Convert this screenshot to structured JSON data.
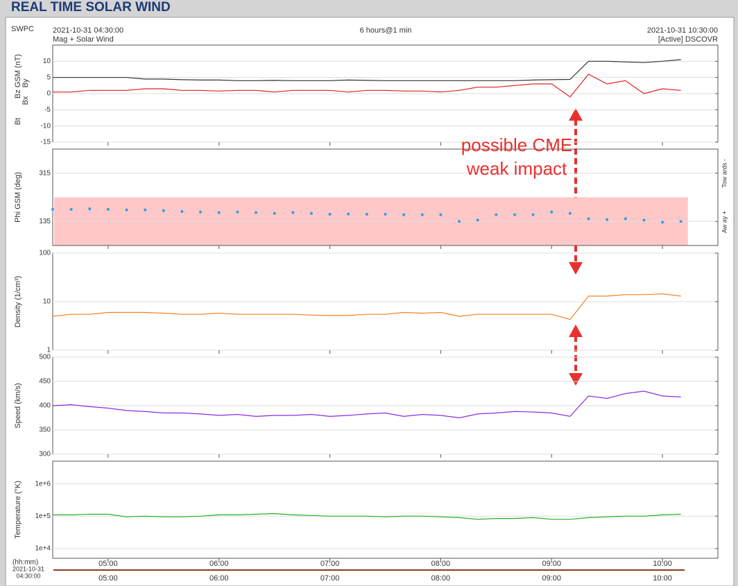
{
  "page_title": "REAL TIME SOLAR WIND",
  "header": {
    "source": "SWPC",
    "start": "2021-10-31 04:30:00",
    "end": "2021-10-31 10:30:00",
    "product": "Mag + Solar Wind",
    "span": "6 hours@1 min",
    "satellite": "[Active] DSCOVR"
  },
  "annotation": "possible CME weak impact",
  "time_axis": {
    "label": "(hh:mm)",
    "date": "2021-10-31",
    "start_time": "04:30:00",
    "xlim": [
      "04:30",
      "10:30"
    ],
    "xticks": [
      "05:00",
      "06:00",
      "07:00",
      "08:00",
      "09:00",
      "10:00"
    ]
  },
  "chart_data": [
    {
      "type": "line",
      "ylim": [
        -15,
        15
      ],
      "yticks": [
        -15,
        -10,
        -5,
        0,
        5,
        10
      ],
      "grid": true,
      "ylabel_extra": [
        "By",
        "Bx"
      ],
      "x": [
        "04:30",
        "04:40",
        "04:50",
        "05:00",
        "05:10",
        "05:20",
        "05:30",
        "05:40",
        "05:50",
        "06:00",
        "06:10",
        "06:20",
        "06:30",
        "06:40",
        "06:50",
        "07:00",
        "07:10",
        "07:20",
        "07:30",
        "07:40",
        "07:50",
        "08:00",
        "08:10",
        "08:20",
        "08:30",
        "08:40",
        "08:50",
        "09:00",
        "09:10",
        "09:20",
        "09:30",
        "09:40",
        "09:50",
        "10:00",
        "10:10"
      ],
      "series": [
        {
          "name": "Bt",
          "color": "#333333",
          "values": [
            5,
            5,
            5,
            5,
            5,
            4.5,
            4.5,
            4.3,
            4.2,
            4.2,
            4,
            4,
            4.1,
            4,
            4,
            4,
            4.2,
            4.1,
            4,
            4,
            4,
            4,
            4,
            4,
            4,
            4,
            4.2,
            4.3,
            4.4,
            10,
            10,
            9.8,
            9.6,
            10,
            10.5
          ]
        },
        {
          "name": "Bz GSM (nT)",
          "color": "#e0201e",
          "values": [
            0.5,
            0.5,
            1,
            1,
            1,
            1.5,
            1.5,
            1,
            1,
            0.8,
            1,
            1,
            0.5,
            1,
            1,
            1,
            0.5,
            1,
            1,
            0.8,
            0.8,
            0.5,
            1,
            2,
            2,
            2.5,
            3,
            3,
            -1,
            6,
            3,
            4,
            0,
            1.5,
            1
          ]
        }
      ]
    },
    {
      "type": "scatter",
      "ylim": [
        45,
        405
      ],
      "yticks": [
        135,
        315
      ],
      "grid": true,
      "band": [
        45,
        225
      ],
      "band_color": "#ffc8c8",
      "right_labels": [
        "Tow ards -",
        "Aw ay +"
      ],
      "x": [
        "04:30",
        "04:40",
        "04:50",
        "05:00",
        "05:10",
        "05:20",
        "05:30",
        "05:40",
        "05:50",
        "06:00",
        "06:10",
        "06:20",
        "06:30",
        "06:40",
        "06:50",
        "07:00",
        "07:10",
        "07:20",
        "07:30",
        "07:40",
        "07:50",
        "08:00",
        "08:10",
        "08:20",
        "08:30",
        "08:40",
        "08:50",
        "09:00",
        "09:10",
        "09:20",
        "09:30",
        "09:40",
        "09:50",
        "10:00",
        "10:10"
      ],
      "series": [
        {
          "name": "Phi GSM (deg)",
          "color": "#2d9fe0",
          "values": [
            180,
            180,
            182,
            180,
            178,
            178,
            175,
            172,
            170,
            168,
            170,
            168,
            165,
            168,
            165,
            162,
            163,
            162,
            162,
            160,
            160,
            160,
            135,
            140,
            160,
            160,
            160,
            170,
            165,
            145,
            142,
            145,
            140,
            132,
            135
          ]
        }
      ]
    },
    {
      "type": "line",
      "log": true,
      "ylim": [
        1,
        100
      ],
      "yticks": [
        1,
        10,
        100
      ],
      "grid": true,
      "x": [
        "04:30",
        "04:40",
        "04:50",
        "05:00",
        "05:10",
        "05:20",
        "05:30",
        "05:40",
        "05:50",
        "06:00",
        "06:10",
        "06:20",
        "06:30",
        "06:40",
        "06:50",
        "07:00",
        "07:10",
        "07:20",
        "07:30",
        "07:40",
        "07:50",
        "08:00",
        "08:10",
        "08:20",
        "08:30",
        "08:40",
        "08:50",
        "09:00",
        "09:10",
        "09:20",
        "09:30",
        "09:40",
        "09:50",
        "10:00",
        "10:10"
      ],
      "series": [
        {
          "name": "Density (1/cm³)",
          "color": "#f0821e",
          "values": [
            5,
            5.5,
            5.5,
            6,
            6,
            6,
            5.8,
            5.5,
            5.5,
            5.8,
            5.5,
            5.5,
            5.5,
            5.5,
            5.3,
            5.2,
            5.2,
            5.5,
            5.5,
            6,
            5.8,
            6,
            5,
            5.5,
            5.5,
            5.5,
            5.5,
            5.5,
            4.3,
            13,
            13,
            14,
            14,
            14.5,
            13
          ]
        }
      ]
    },
    {
      "type": "line",
      "ylim": [
        300,
        500
      ],
      "yticks": [
        300,
        350,
        400,
        450,
        500
      ],
      "grid": true,
      "x": [
        "04:30",
        "04:40",
        "04:50",
        "05:00",
        "05:10",
        "05:20",
        "05:30",
        "05:40",
        "05:50",
        "06:00",
        "06:10",
        "06:20",
        "06:30",
        "06:40",
        "06:50",
        "07:00",
        "07:10",
        "07:20",
        "07:30",
        "07:40",
        "07:50",
        "08:00",
        "08:10",
        "08:20",
        "08:30",
        "08:40",
        "08:50",
        "09:00",
        "09:10",
        "09:20",
        "09:30",
        "09:40",
        "09:50",
        "10:00",
        "10:10"
      ],
      "series": [
        {
          "name": "Speed (km/s)",
          "color": "#8a2be2",
          "values": [
            400,
            402,
            398,
            395,
            390,
            388,
            385,
            385,
            383,
            380,
            382,
            378,
            380,
            380,
            382,
            378,
            380,
            383,
            385,
            378,
            382,
            380,
            375,
            383,
            385,
            388,
            387,
            385,
            378,
            420,
            415,
            425,
            430,
            420,
            418
          ]
        }
      ]
    },
    {
      "type": "line",
      "log": true,
      "ylim": [
        5000,
        5000000
      ],
      "yticks": [
        {
          "value": 10000,
          "label": "1e+4"
        },
        {
          "value": 100000,
          "label": "1e+5"
        },
        {
          "value": 1000000,
          "label": "1e+6"
        }
      ],
      "grid": true,
      "x": [
        "04:30",
        "04:40",
        "04:50",
        "05:00",
        "05:10",
        "05:20",
        "05:30",
        "05:40",
        "05:50",
        "06:00",
        "06:10",
        "06:20",
        "06:30",
        "06:40",
        "06:50",
        "07:00",
        "07:10",
        "07:20",
        "07:30",
        "07:40",
        "07:50",
        "08:00",
        "08:10",
        "08:20",
        "08:30",
        "08:40",
        "08:50",
        "09:00",
        "09:10",
        "09:20",
        "09:30",
        "09:40",
        "09:50",
        "10:00",
        "10:10"
      ],
      "series": [
        {
          "name": "Temperature (°K)",
          "color": "#22b022",
          "values": [
            110000,
            110000,
            115000,
            115000,
            95000,
            100000,
            95000,
            95000,
            100000,
            110000,
            110000,
            115000,
            120000,
            110000,
            105000,
            100000,
            100000,
            100000,
            95000,
            100000,
            100000,
            95000,
            90000,
            80000,
            85000,
            85000,
            90000,
            80000,
            80000,
            90000,
            95000,
            100000,
            100000,
            110000,
            115000
          ]
        }
      ]
    }
  ]
}
